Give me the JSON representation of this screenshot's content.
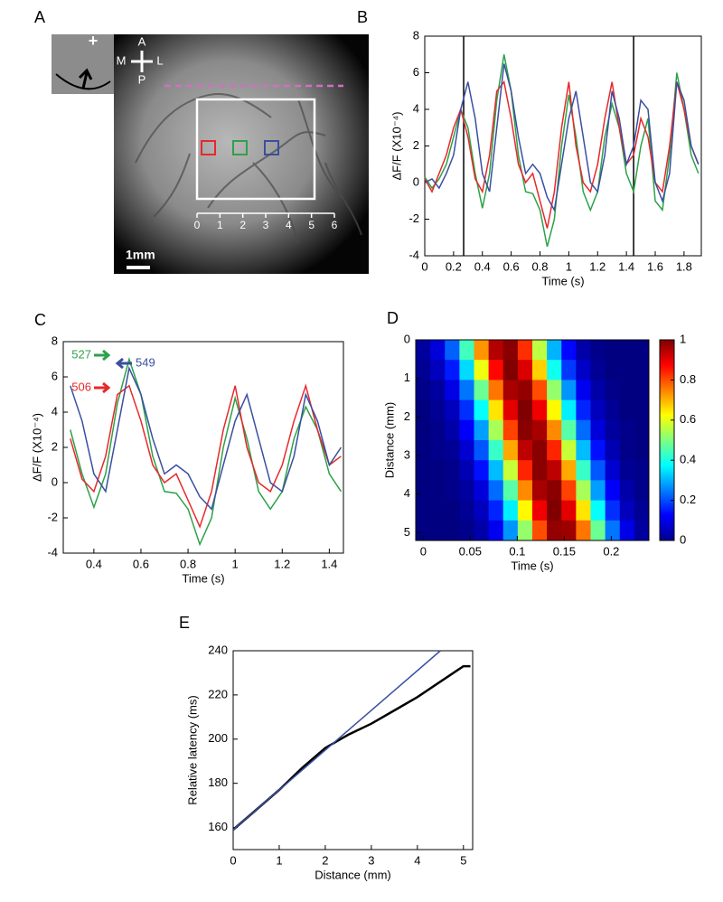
{
  "chart_data": [
    {
      "type": "image",
      "label": "A",
      "inset_marker": "+",
      "compass": {
        "anterior": "A",
        "medial": "M",
        "lateral": "L",
        "posterior": "P"
      },
      "scale_bar": "1mm",
      "scale_ticks": [
        0,
        1,
        2,
        3,
        4,
        5,
        6
      ],
      "roi_colors": [
        "#e8282a",
        "#2ca24a",
        "#3a4fa0"
      ]
    },
    {
      "type": "line",
      "label": "B",
      "ylabel": "ΔF/F (X10⁻⁴)",
      "xlabel": "Time (s)",
      "xlim": [
        0,
        1.92
      ],
      "ylim": [
        -4,
        8
      ],
      "xticks": [
        0,
        0.2,
        0.4,
        0.6,
        0.8,
        1,
        1.2,
        1.4,
        1.6,
        1.8
      ],
      "yticks": [
        -4,
        -2,
        0,
        2,
        4,
        6,
        8
      ],
      "vlines": [
        0.27,
        1.45
      ],
      "x": [
        0,
        0.05,
        0.1,
        0.15,
        0.2,
        0.25,
        0.3,
        0.35,
        0.4,
        0.45,
        0.5,
        0.55,
        0.6,
        0.65,
        0.7,
        0.75,
        0.8,
        0.85,
        0.9,
        0.95,
        1.0,
        1.05,
        1.1,
        1.15,
        1.2,
        1.25,
        1.3,
        1.35,
        1.4,
        1.45,
        1.5,
        1.55,
        1.6,
        1.65,
        1.7,
        1.75,
        1.8,
        1.85,
        1.9
      ],
      "series": [
        {
          "color": "#2ca24a",
          "values": [
            0.3,
            -0.3,
            0.2,
            1.0,
            2.5,
            4.0,
            3.0,
            0.5,
            -1.4,
            0.5,
            4.5,
            7.0,
            5.0,
            1.5,
            -0.5,
            -0.6,
            -1.5,
            -3.5,
            -2.0,
            2.0,
            4.8,
            2.5,
            -0.5,
            -1.5,
            -0.5,
            2.5,
            4.3,
            3.0,
            0.5,
            -0.5,
            2.0,
            3.5,
            -1.0,
            -1.5,
            1.5,
            6.0,
            4.0,
            1.5,
            0.5
          ]
        },
        {
          "color": "#e8282a",
          "values": [
            0.2,
            -0.5,
            0.5,
            1.5,
            3.0,
            4.0,
            2.5,
            0.2,
            -0.5,
            1.5,
            5.0,
            5.5,
            3.5,
            1.0,
            0.0,
            0.5,
            -1.0,
            -2.5,
            -0.5,
            3.0,
            5.5,
            2.0,
            0.0,
            -0.5,
            1.0,
            3.5,
            5.5,
            3.0,
            1.0,
            1.5,
            3.5,
            2.5,
            0.0,
            -0.5,
            2.0,
            5.5,
            4.0,
            2.0,
            1.0
          ]
        },
        {
          "color": "#3a4fa0",
          "values": [
            0.0,
            0.2,
            -0.3,
            0.5,
            1.5,
            4.0,
            5.5,
            3.5,
            0.5,
            -0.5,
            3.0,
            6.5,
            5.0,
            2.5,
            0.5,
            1.0,
            0.5,
            -0.8,
            -1.5,
            1.0,
            3.5,
            5.0,
            2.5,
            0.0,
            -0.5,
            1.5,
            5.0,
            3.5,
            1.0,
            2.0,
            4.5,
            4.0,
            0.0,
            -1.0,
            0.5,
            5.5,
            4.5,
            2.0,
            1.0
          ]
        }
      ]
    },
    {
      "type": "line",
      "label": "C",
      "ylabel": "ΔF/F (X10⁻⁴)",
      "xlabel": "Time (s)",
      "xlim": [
        0.27,
        1.46
      ],
      "ylim": [
        -4,
        8
      ],
      "xticks": [
        0.4,
        0.6,
        0.8,
        1,
        1.2,
        1.4
      ],
      "yticks": [
        -4,
        -2,
        0,
        2,
        4,
        6,
        8
      ],
      "x": [
        0.3,
        0.35,
        0.4,
        0.45,
        0.5,
        0.55,
        0.6,
        0.65,
        0.7,
        0.75,
        0.8,
        0.85,
        0.9,
        0.95,
        1.0,
        1.05,
        1.1,
        1.15,
        1.2,
        1.25,
        1.3,
        1.35,
        1.4,
        1.45
      ],
      "series": [
        {
          "color": "#2ca24a",
          "values": [
            3.0,
            0.5,
            -1.4,
            0.5,
            4.5,
            7.0,
            5.0,
            1.5,
            -0.5,
            -0.6,
            -1.5,
            -3.5,
            -2.0,
            2.0,
            4.8,
            2.5,
            -0.5,
            -1.5,
            -0.5,
            2.5,
            4.3,
            3.0,
            0.5,
            -0.5
          ]
        },
        {
          "color": "#e8282a",
          "values": [
            2.5,
            0.2,
            -0.5,
            1.5,
            5.0,
            5.5,
            3.5,
            1.0,
            0.0,
            0.5,
            -1.0,
            -2.5,
            -0.5,
            3.0,
            5.5,
            2.0,
            0.0,
            -0.5,
            1.0,
            3.5,
            5.5,
            3.0,
            1.0,
            1.5
          ]
        },
        {
          "color": "#3a4fa0",
          "values": [
            5.5,
            3.5,
            0.5,
            -0.5,
            3.0,
            6.5,
            5.0,
            2.5,
            0.5,
            1.0,
            0.5,
            -0.8,
            -1.5,
            1.0,
            3.5,
            5.0,
            2.5,
            0.0,
            -0.5,
            1.5,
            5.0,
            3.5,
            1.0,
            2.0
          ]
        }
      ],
      "annotations": [
        {
          "text": "527",
          "color": "#2ca24a"
        },
        {
          "text": "549",
          "color": "#3a4fa0"
        },
        {
          "text": "506",
          "color": "#e8282a"
        }
      ]
    },
    {
      "type": "heatmap",
      "label": "D",
      "ylabel": "Distance (mm)",
      "xlabel": "Time (s)",
      "xlim": [
        -0.008,
        0.24
      ],
      "ylim": [
        0,
        5.2
      ],
      "yreverse": true,
      "xticks": [
        0,
        0.05,
        0.1,
        0.15,
        0.2
      ],
      "yticks": [
        0,
        1,
        2,
        3,
        4,
        5
      ],
      "colormap": "jet",
      "clim": [
        0,
        1
      ],
      "cticks": [
        0,
        0.2,
        0.4,
        0.6,
        0.8,
        1
      ],
      "z": [
        [
          0.03,
          0.09,
          0.22,
          0.44,
          0.73,
          0.95,
          0.99,
          0.83,
          0.56,
          0.3,
          0.13,
          0.04,
          0.01,
          0,
          0,
          0
        ],
        [
          0.02,
          0.06,
          0.15,
          0.34,
          0.61,
          0.87,
          1.0,
          0.91,
          0.67,
          0.39,
          0.18,
          0.07,
          0.02,
          0,
          0,
          0
        ],
        [
          0.01,
          0.03,
          0.1,
          0.24,
          0.48,
          0.76,
          0.96,
          0.98,
          0.8,
          0.52,
          0.27,
          0.11,
          0.04,
          0.01,
          0,
          0
        ],
        [
          0,
          0.02,
          0.06,
          0.17,
          0.38,
          0.65,
          0.9,
          1.0,
          0.89,
          0.63,
          0.36,
          0.16,
          0.06,
          0.02,
          0,
          0
        ],
        [
          0,
          0.01,
          0.04,
          0.12,
          0.28,
          0.54,
          0.81,
          0.99,
          0.96,
          0.74,
          0.46,
          0.23,
          0.09,
          0.03,
          0.01,
          0
        ],
        [
          0,
          0.01,
          0.02,
          0.08,
          0.21,
          0.43,
          0.71,
          0.94,
          0.99,
          0.84,
          0.57,
          0.31,
          0.14,
          0.05,
          0.01,
          0
        ],
        [
          0,
          0,
          0.01,
          0.05,
          0.14,
          0.31,
          0.57,
          0.84,
          0.99,
          0.94,
          0.71,
          0.43,
          0.21,
          0.08,
          0.02,
          0.01
        ],
        [
          0,
          0,
          0.01,
          0.03,
          0.09,
          0.23,
          0.46,
          0.74,
          0.96,
          0.99,
          0.81,
          0.54,
          0.28,
          0.12,
          0.04,
          0.01
        ],
        [
          0,
          0,
          0,
          0.02,
          0.06,
          0.16,
          0.36,
          0.63,
          0.89,
          1.0,
          0.9,
          0.65,
          0.38,
          0.17,
          0.06,
          0.02
        ],
        [
          0,
          0,
          0,
          0.01,
          0.04,
          0.11,
          0.27,
          0.52,
          0.8,
          0.98,
          0.97,
          0.76,
          0.48,
          0.24,
          0.1,
          0.03
        ]
      ]
    },
    {
      "type": "line",
      "label": "E",
      "ylabel": "Relative latency (ms)",
      "xlabel": "Distance (mm)",
      "xlim": [
        0,
        5.2
      ],
      "ylim": [
        150,
        240
      ],
      "xticks": [
        0,
        1,
        2,
        3,
        4,
        5
      ],
      "yticks": [
        160,
        180,
        200,
        220,
        240
      ],
      "series": [
        {
          "color": "#000000",
          "x": [
            0,
            0.5,
            1,
            1.5,
            2,
            2.5,
            3,
            3.5,
            4,
            4.5,
            5,
            5.15
          ],
          "values": [
            159,
            168,
            177,
            187,
            196,
            202,
            207,
            213,
            219,
            226,
            233,
            233
          ]
        },
        {
          "color": "#3a4fa0",
          "x": [
            0,
            4.5
          ],
          "values": [
            159,
            240
          ]
        }
      ]
    }
  ]
}
